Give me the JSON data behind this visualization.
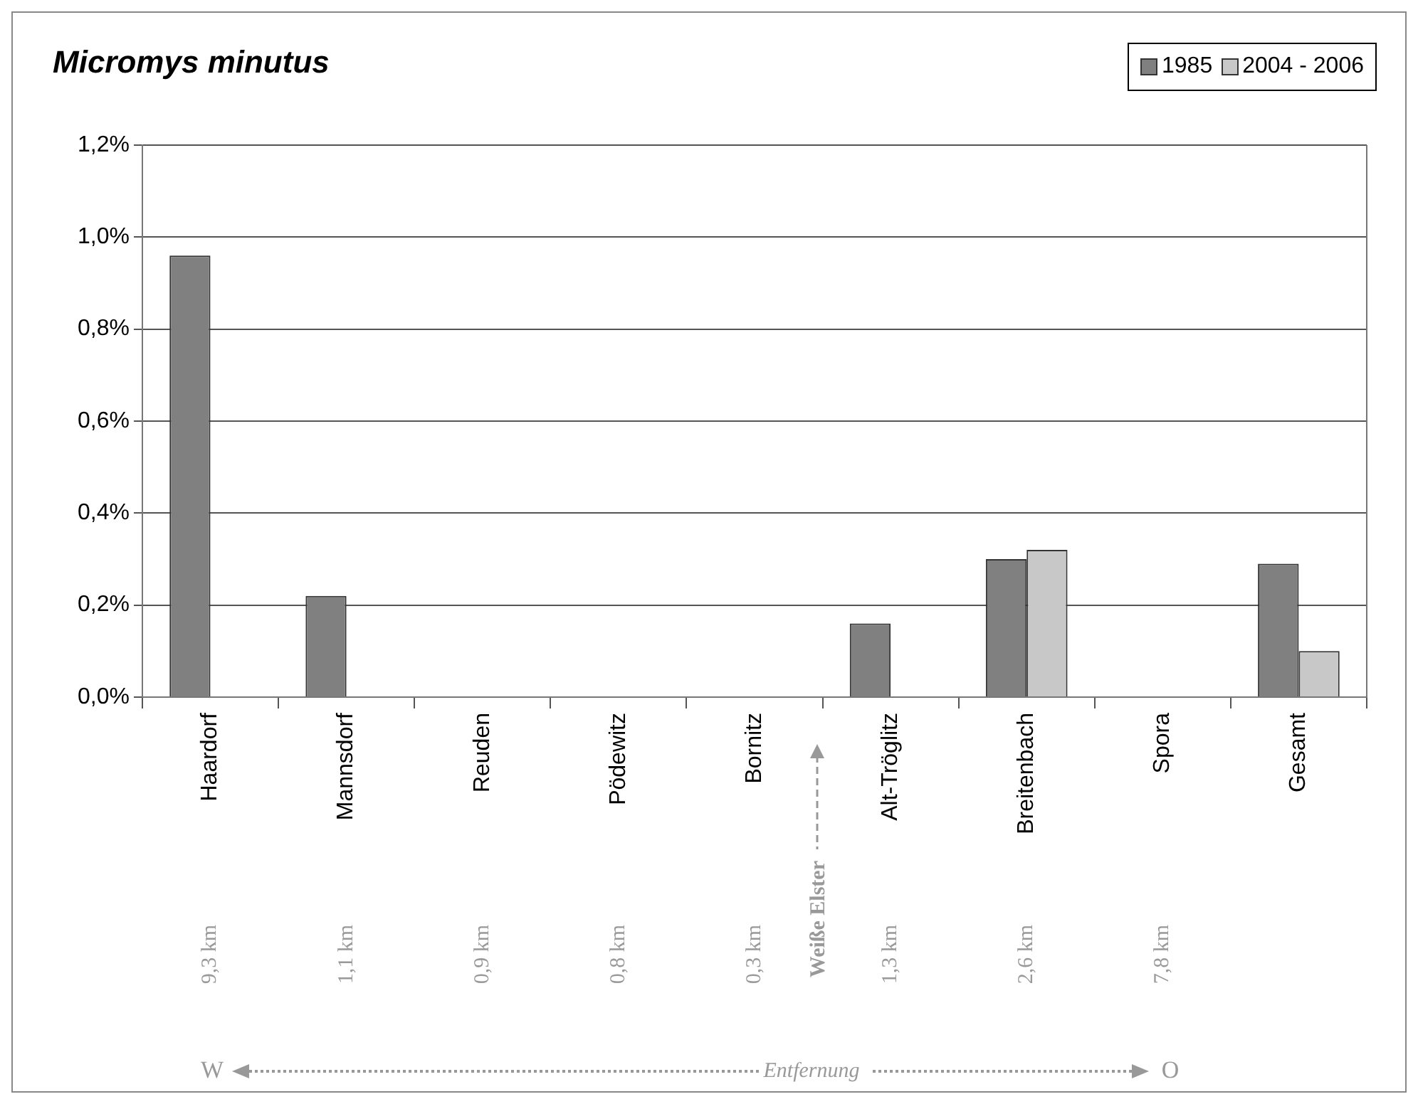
{
  "chart_data": {
    "type": "bar",
    "title": "Micromys minutus",
    "categories": [
      "Haardorf",
      "Mannsdorf",
      "Reuden",
      "Pödewitz",
      "Bornitz",
      "Alt-Tröglitz",
      "Breitenbach",
      "Spora",
      "Gesamt"
    ],
    "series": [
      {
        "name": "1985",
        "color": "#808080",
        "values": [
          0.96,
          0.22,
          0,
          0,
          0,
          0.16,
          0.3,
          0,
          0.29
        ]
      },
      {
        "name": "2004 - 2006",
        "color": "#c8c8c8",
        "values": [
          0,
          0,
          0,
          0,
          0,
          0,
          0.32,
          0,
          0.1
        ]
      }
    ],
    "ylim": [
      0,
      1.2
    ],
    "yticks": [
      {
        "value": 0,
        "label": "0,0%"
      },
      {
        "value": 0.2,
        "label": "0,2%"
      },
      {
        "value": 0.4,
        "label": "0,4%"
      },
      {
        "value": 0.6,
        "label": "0,6%"
      },
      {
        "value": 0.8,
        "label": "0,8%"
      },
      {
        "value": 1.0,
        "label": "1,0%"
      },
      {
        "value": 1.2,
        "label": "1,2%"
      }
    ],
    "grid": "y",
    "legend": "top right",
    "annotations": [
      "9,3 km",
      "1,1 km",
      "0,9 km",
      "0,8 km",
      "0,3 km",
      "1,3 km",
      "2,6 km",
      "7,8 km",
      "Weiße Elster",
      "W",
      "Entfernung",
      "O"
    ]
  }
}
